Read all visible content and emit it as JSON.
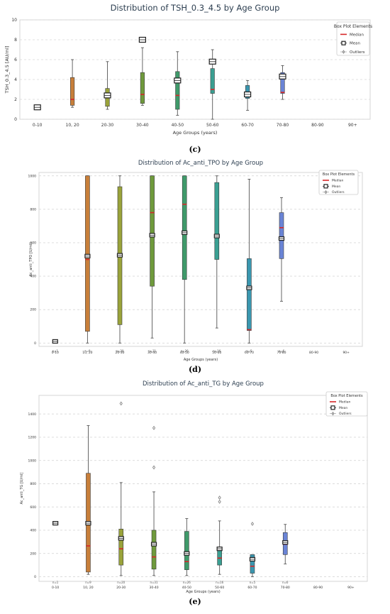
{
  "chart_data": [
    {
      "panel": "(c)",
      "type": "boxplot",
      "title": "Distribution of TSH_0.3_4.5 by Age Group",
      "xlabel": "Age Groups (years)",
      "ylabel": "TSH_0.3_4.5 [AU/ml]",
      "ylim": [
        0,
        10
      ],
      "yticks": [
        0,
        2,
        4,
        6,
        8,
        10
      ],
      "categories": [
        "0-10",
        "10, 20",
        "20-30",
        "30-40",
        "40-50",
        "50-60",
        "60-70",
        "70-80",
        "80-90",
        "90+"
      ],
      "legend": {
        "title": "Box Plot Elements",
        "items": [
          "Median",
          "Mean",
          "Outliers"
        ],
        "position": "top-right"
      },
      "counts": [],
      "boxes": [
        {
          "category": "0-10",
          "mean": 1.2
        },
        {
          "category": "10, 20",
          "q1": 1.4,
          "median": 2.0,
          "q3": 4.2,
          "whisker_low": 1.2,
          "whisker_high": 6.0,
          "mean": null,
          "color": "#c87f3a"
        },
        {
          "category": "20-30",
          "q1": 1.3,
          "median": 2.2,
          "q3": 3.1,
          "whisker_low": 1.0,
          "whisker_high": 5.8,
          "mean": 2.4,
          "color": "#9aa33a"
        },
        {
          "category": "30-40",
          "q1": 1.6,
          "median": 2.5,
          "q3": 4.7,
          "whisker_low": 1.4,
          "whisker_high": 7.2,
          "mean": 8.0,
          "color": "#6f9a3c"
        },
        {
          "category": "40-50",
          "q1": 1.0,
          "median": 2.4,
          "q3": 4.8,
          "whisker_low": 0.4,
          "whisker_high": 6.8,
          "mean": 3.9,
          "color": "#3f9a6a"
        },
        {
          "category": "50-60",
          "q1": 2.6,
          "median": 3.0,
          "q3": 5.1,
          "whisker_low": 0.0,
          "whisker_high": 7.0,
          "mean": 5.8,
          "color": "#3a9f92"
        },
        {
          "category": "60-70",
          "q1": 2.1,
          "median": 2.4,
          "q3": 3.4,
          "whisker_low": 0.9,
          "whisker_high": 3.9,
          "mean": 2.5,
          "color": "#3a97b0"
        },
        {
          "category": "70-80",
          "q1": 2.6,
          "median": 2.7,
          "q3": 4.7,
          "whisker_low": 2.0,
          "whisker_high": 5.4,
          "mean": 4.3,
          "color": "#6a84d6"
        }
      ],
      "outliers": []
    },
    {
      "panel": "(d)",
      "type": "boxplot",
      "title": "Distribution of Ac_anti_TPO by Age Group",
      "xlabel": "Age Groups (years)",
      "ylabel": "Ac_anti_TPO [U/ml]",
      "ylim": [
        -20,
        1020
      ],
      "yticks": [
        0,
        200,
        400,
        600,
        800,
        1000
      ],
      "categories": [
        "0-10",
        "10, 20",
        "20-30",
        "30-40",
        "40-50",
        "50-60",
        "60-70",
        "70-80",
        "80-90",
        "90+"
      ],
      "legend": {
        "title": "Box Plot Elements",
        "items": [
          "Median",
          "Mean",
          "Outliers"
        ],
        "position": "top-right"
      },
      "counts": [
        "n=1",
        "n=9",
        "n=20",
        "n=31",
        "n=26",
        "n=16",
        "n=5",
        "n=6",
        "",
        ""
      ],
      "boxes": [
        {
          "category": "0-10",
          "mean": 10
        },
        {
          "category": "10, 20",
          "q1": 70,
          "median": 500,
          "q3": 1000,
          "whisker_low": 0,
          "whisker_high": 1000,
          "mean": 520,
          "color": "#c87f3a"
        },
        {
          "category": "20-30",
          "q1": 110,
          "median": 520,
          "q3": 935,
          "whisker_low": 0,
          "whisker_high": 1000,
          "mean": 525,
          "color": "#9aa33a"
        },
        {
          "category": "30-40",
          "q1": 340,
          "median": 780,
          "q3": 1000,
          "whisker_low": 30,
          "whisker_high": 1000,
          "mean": 645,
          "color": "#6f9a3c"
        },
        {
          "category": "40-50",
          "q1": 380,
          "median": 830,
          "q3": 1000,
          "whisker_low": 0,
          "whisker_high": 1000,
          "mean": 660,
          "color": "#3f9a6a"
        },
        {
          "category": "50-60",
          "q1": 500,
          "median": 645,
          "q3": 960,
          "whisker_low": 90,
          "whisker_high": 1000,
          "mean": 640,
          "color": "#3a9f92"
        },
        {
          "category": "60-70",
          "q1": 75,
          "median": 80,
          "q3": 505,
          "whisker_low": 0,
          "whisker_high": 980,
          "mean": 330,
          "color": "#3a97b0"
        },
        {
          "category": "70-80",
          "q1": 505,
          "median": 690,
          "q3": 780,
          "whisker_low": 250,
          "whisker_high": 870,
          "mean": 625,
          "color": "#6a84d6"
        }
      ],
      "outliers": []
    },
    {
      "panel": "(e)",
      "type": "boxplot",
      "title": "Distribution of Ac_anti_TG by Age Group",
      "xlabel": "Age Groups (years)",
      "ylabel": "Ac_anti_TG [U/ml]",
      "ylim": [
        -40,
        1560
      ],
      "yticks": [
        0,
        200,
        400,
        600,
        800,
        1000,
        1200,
        1400
      ],
      "categories": [
        "0-10",
        "10, 20",
        "20-30",
        "30-40",
        "40-50",
        "50-60",
        "60-70",
        "70-80",
        "80-90",
        "90+"
      ],
      "legend": {
        "title": "Box Plot Elements",
        "items": [
          "Median",
          "Mean",
          "Outliers"
        ],
        "position": "top-right"
      },
      "counts": [
        "n=1",
        "n=9",
        "n=20",
        "n=31",
        "n=26",
        "n=16",
        "n=5",
        "n=6",
        "",
        ""
      ],
      "boxes": [
        {
          "category": "0-10",
          "mean": 460
        },
        {
          "category": "10, 20",
          "q1": 40,
          "median": 265,
          "q3": 890,
          "whisker_low": 20,
          "whisker_high": 1300,
          "mean": 460,
          "color": "#c87f3a"
        },
        {
          "category": "20-30",
          "q1": 100,
          "median": 240,
          "q3": 410,
          "whisker_low": 10,
          "whisker_high": 810,
          "mean": 330,
          "color": "#9aa33a"
        },
        {
          "category": "30-40",
          "q1": 65,
          "median": 170,
          "q3": 400,
          "whisker_low": 10,
          "whisker_high": 730,
          "mean": 280,
          "color": "#6f9a3c"
        },
        {
          "category": "40-50",
          "q1": 60,
          "median": 130,
          "q3": 390,
          "whisker_low": 10,
          "whisker_high": 500,
          "mean": 200,
          "color": "#3f9a6a"
        },
        {
          "category": "50-60",
          "q1": 100,
          "median": 160,
          "q3": 250,
          "whisker_low": 20,
          "whisker_high": 480,
          "mean": 240,
          "color": "#3a9f92"
        },
        {
          "category": "60-70",
          "q1": 30,
          "median": 90,
          "q3": 190,
          "whisker_low": 0,
          "whisker_high": 190,
          "mean": 150,
          "color": "#3a97b0"
        },
        {
          "category": "70-80",
          "q1": 190,
          "median": 280,
          "q3": 380,
          "whisker_low": 110,
          "whisker_high": 450,
          "mean": 295,
          "color": "#6a84d6"
        }
      ],
      "outliers": [
        {
          "category": "20-30",
          "value": 1490
        },
        {
          "category": "30-40",
          "value": 1280
        },
        {
          "category": "30-40",
          "value": 940
        },
        {
          "category": "50-60",
          "value": 680
        },
        {
          "category": "50-60",
          "value": 645
        },
        {
          "category": "60-70",
          "value": 455
        }
      ]
    }
  ]
}
